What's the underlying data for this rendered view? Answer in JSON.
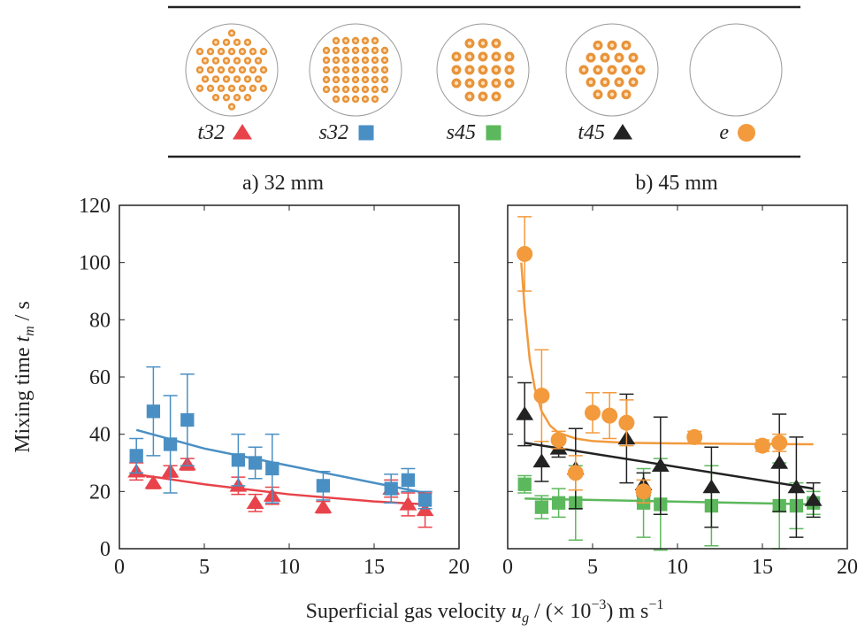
{
  "chart_data": [
    {
      "type": "scatter",
      "title": "a) 32 mm",
      "xlim": [
        0,
        20
      ],
      "ylim": [
        0,
        120
      ],
      "xticks": [
        0,
        5,
        10,
        15,
        20
      ],
      "yticks": [
        0,
        20,
        40,
        60,
        80,
        100,
        120
      ],
      "show_ytick_labels": true,
      "series": [
        {
          "name": "t32",
          "color": "#e8434a",
          "marker": "triangle",
          "x": [
            1,
            2,
            3,
            4,
            7,
            8,
            9,
            12,
            16,
            17,
            18
          ],
          "values": [
            27,
            23,
            27,
            29.5,
            22,
            16,
            18.5,
            14.5,
            21,
            15.5,
            13.5
          ],
          "errors": [
            3,
            2,
            2,
            2,
            3,
            3,
            3,
            2,
            3,
            4,
            6
          ]
        },
        {
          "name": "s32",
          "color": "#4a8fc4",
          "marker": "square",
          "x": [
            1,
            2,
            3,
            4,
            7,
            8,
            9,
            12,
            16,
            17,
            18
          ],
          "values": [
            32.5,
            48,
            36.5,
            45,
            31,
            30,
            28,
            22,
            21,
            24,
            17
          ],
          "errors": [
            6,
            15.5,
            17,
            16,
            9,
            5.5,
            12,
            5,
            5,
            4,
            3
          ]
        }
      ],
      "fits": [
        {
          "color": "#e8434a",
          "x": [
            1,
            5,
            10,
            15,
            18
          ],
          "values": [
            26,
            22.5,
            19,
            16.5,
            15.5
          ]
        },
        {
          "color": "#4a8fc4",
          "x": [
            1,
            5,
            10,
            15,
            18
          ],
          "values": [
            41.5,
            35,
            29,
            23,
            19.5
          ]
        }
      ]
    },
    {
      "type": "scatter",
      "title": "b) 45 mm",
      "xlim": [
        0,
        20
      ],
      "ylim": [
        0,
        120
      ],
      "xticks": [
        0,
        5,
        10,
        15,
        20
      ],
      "yticks": [
        0,
        20,
        40,
        60,
        80,
        100,
        120
      ],
      "show_ytick_labels": false,
      "series": [
        {
          "name": "s45",
          "color": "#5cb85c",
          "marker": "square",
          "x": [
            1,
            2,
            3,
            4,
            8,
            9,
            12,
            16,
            17,
            18
          ],
          "values": [
            22.5,
            14.5,
            16,
            16,
            16,
            15.5,
            15,
            15,
            15,
            16
          ],
          "errors": [
            3,
            4,
            5,
            13,
            12,
            16,
            14,
            15,
            8,
            4
          ]
        },
        {
          "name": "t45",
          "color": "#222222",
          "marker": "triangle",
          "x": [
            1,
            2,
            3,
            4,
            7,
            8,
            9,
            12,
            16,
            17,
            18
          ],
          "values": [
            47,
            30.5,
            35,
            28,
            38.5,
            22.5,
            29,
            21.5,
            30,
            21.5,
            17
          ],
          "errors": [
            11,
            7,
            3,
            14,
            15.5,
            4,
            17,
            14,
            17,
            17.5,
            6
          ]
        },
        {
          "name": "e",
          "color": "#f39a3d",
          "marker": "circle",
          "x": [
            1,
            2,
            3,
            4,
            5,
            6,
            7,
            8,
            11,
            15,
            16
          ],
          "values": [
            103,
            53.5,
            38,
            26.5,
            47.5,
            46.5,
            44,
            20,
            39,
            36,
            37
          ],
          "errors": [
            13,
            16,
            3,
            6,
            7,
            8,
            8,
            4,
            2,
            2,
            3
          ]
        }
      ],
      "fits": [
        {
          "color": "#5cb85c",
          "x": [
            1,
            18
          ],
          "values": [
            17.5,
            15.5
          ]
        },
        {
          "color": "#222222",
          "x": [
            1,
            18
          ],
          "values": [
            37,
            21
          ]
        },
        {
          "color": "#f39a3d",
          "x": [
            0.8,
            1,
            1.3,
            1.6,
            2,
            2.5,
            3,
            4,
            5,
            7,
            10,
            14,
            18
          ],
          "values": [
            100,
            84,
            66,
            56,
            48,
            43,
            40.5,
            38.5,
            37.6,
            37,
            36.8,
            36.6,
            36.5
          ]
        }
      ]
    }
  ],
  "ylabel_parts": [
    "Mixing time",
    "t",
    "m",
    "/ s"
  ],
  "xlabel_parts": [
    "Superficial gas velocity",
    "u",
    "g",
    "/ (× 10",
    "−3",
    ") m s",
    "−1"
  ]
}
